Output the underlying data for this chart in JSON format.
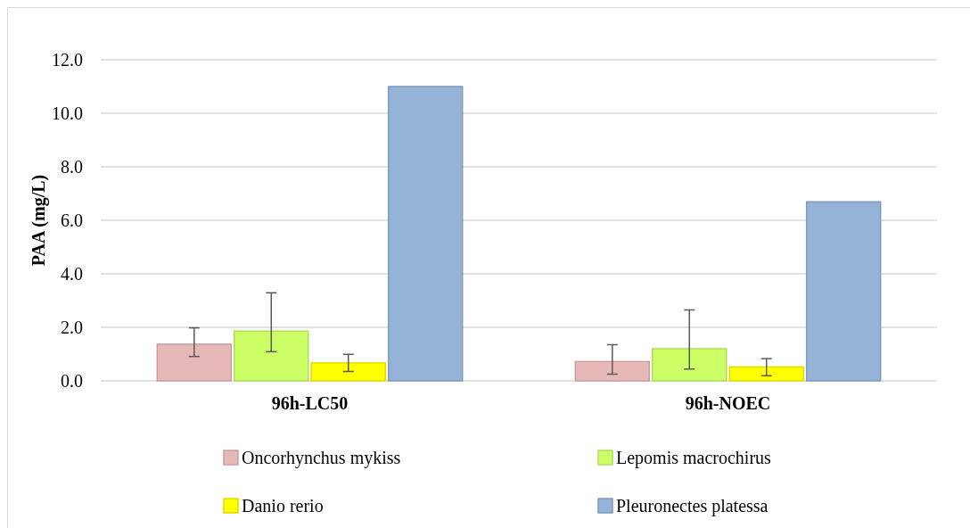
{
  "chart_data": {
    "type": "bar",
    "ylabel": "PAA (mg/L)",
    "categories": [
      "96h-LC50",
      "96h-NOEC"
    ],
    "series": [
      {
        "name": "Oncorhynchus mykiss",
        "color": "#e6b8b7",
        "values": [
          1.37,
          0.72
        ],
        "errors": [
          [
            0.91,
            1.98
          ],
          [
            0.25,
            1.35
          ]
        ]
      },
      {
        "name": "Lepomis macrochirus",
        "color": "#ccff66",
        "values": [
          1.86,
          1.2
        ],
        "errors": [
          [
            1.09,
            3.29
          ],
          [
            0.44,
            2.65
          ]
        ]
      },
      {
        "name": "Danio rerio",
        "color": "#ffff00",
        "values": [
          0.67,
          0.52
        ],
        "errors": [
          [
            0.35,
            0.99
          ],
          [
            0.19,
            0.83
          ]
        ]
      },
      {
        "name": "Pleuronectes platessa",
        "color": "#95b3d7",
        "values": [
          11.0,
          6.69
        ]
      }
    ],
    "ylim": [
      0,
      12
    ],
    "yticks": [
      {
        "value": 0,
        "label": "0.0"
      },
      {
        "value": 2,
        "label": "2.0"
      },
      {
        "value": 4,
        "label": "4.0"
      },
      {
        "value": 6,
        "label": "6.0"
      },
      {
        "value": 8,
        "label": "8.0"
      },
      {
        "value": 10,
        "label": "10.0"
      },
      {
        "value": 12,
        "label": "12.0"
      }
    ],
    "grid": "y",
    "legend": "bottom"
  }
}
